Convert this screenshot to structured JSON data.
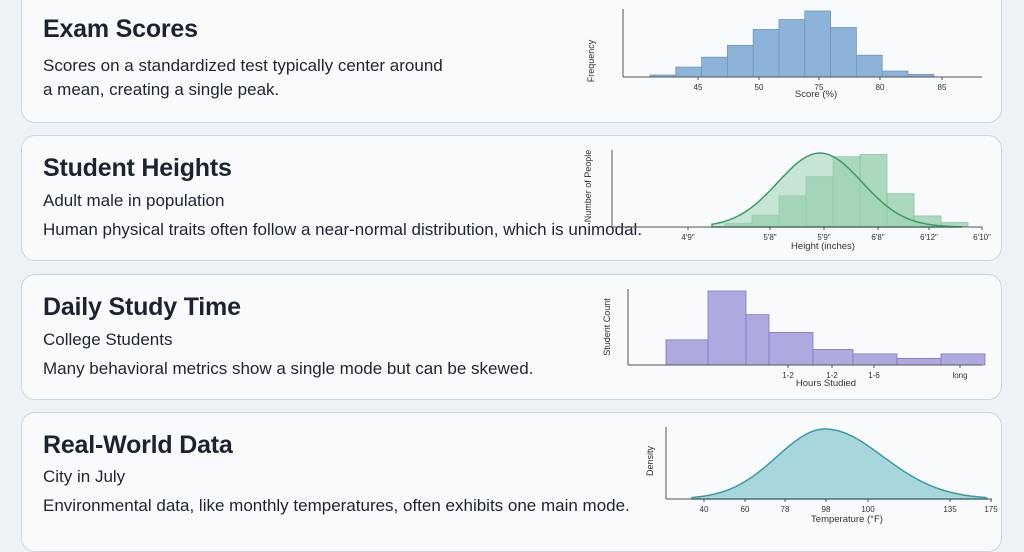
{
  "cards": [
    {
      "title": "Exam Scores",
      "subtitle": "",
      "description": "Scores on a standardized test typically center around a mean, creating a single peak."
    },
    {
      "title": "Student Heights",
      "subtitle": "Adult male in population",
      "description": "Human physical traits often follow a near-normal distribution, which is unimodal."
    },
    {
      "title": "Daily Study Time",
      "subtitle": "College Students",
      "description": "Many behavioral metrics show a single mode but can be skewed."
    },
    {
      "title": "Real-World Data",
      "subtitle": "City in July",
      "description": "Environmental data, like monthly temperatures, often exhibits one main mode."
    }
  ],
  "chart_data": [
    {
      "type": "bar",
      "title": "",
      "xlabel": "Score (%)",
      "ylabel": "Frequency",
      "xlim": [
        37.5,
        92.5
      ],
      "ylim": [
        0,
        100
      ],
      "x_ticks": [
        45,
        50,
        75,
        80,
        85
      ],
      "bin_width": 5,
      "bins": [
        40,
        45,
        50,
        55,
        60,
        65,
        70,
        75,
        80,
        85,
        90
      ],
      "values": [
        3,
        15,
        30,
        48,
        72,
        87,
        100,
        75,
        33,
        9,
        4
      ],
      "color": "#8db3d9",
      "grid": false
    },
    {
      "type": "bar",
      "title": "",
      "xlabel": "Height (inches)",
      "ylabel": "Number of People",
      "ylim": [
        0,
        100
      ],
      "x_ticks": [
        "4'9\"",
        "5'8\"",
        "5'9\"",
        "6'8\"",
        "6'12\"",
        "6'10\""
      ],
      "values": [
        5,
        16,
        42,
        68,
        95,
        98,
        45,
        15,
        6
      ],
      "curve": "normal",
      "color": "#9fd3b4",
      "curve_color": "#3f9a62",
      "grid": false
    },
    {
      "type": "bar",
      "title": "",
      "xlabel": "Hours Studied",
      "ylabel": "Student Count",
      "ylim": [
        0,
        100
      ],
      "x_ticks": [
        "1-2",
        "1-2",
        "1-6",
        "long"
      ],
      "values": [
        34,
        100,
        68,
        44,
        21,
        15,
        9,
        15
      ],
      "color": "#aeaadf",
      "grid": false
    },
    {
      "type": "area",
      "title": "",
      "xlabel": "Temperature (°F)",
      "ylabel": "Density",
      "xlim": [
        40,
        175
      ],
      "ylim": [
        0,
        1
      ],
      "x_ticks": [
        40,
        60,
        78,
        98,
        100,
        135,
        175
      ],
      "tick_labels": [
        "40",
        "60",
        "78",
        "98",
        "100",
        "135",
        "175"
      ],
      "curve": "normal",
      "mean": 99,
      "sd": 21,
      "color": "#a7d7dd",
      "curve_color": "#3f9aa0",
      "grid": false
    }
  ]
}
